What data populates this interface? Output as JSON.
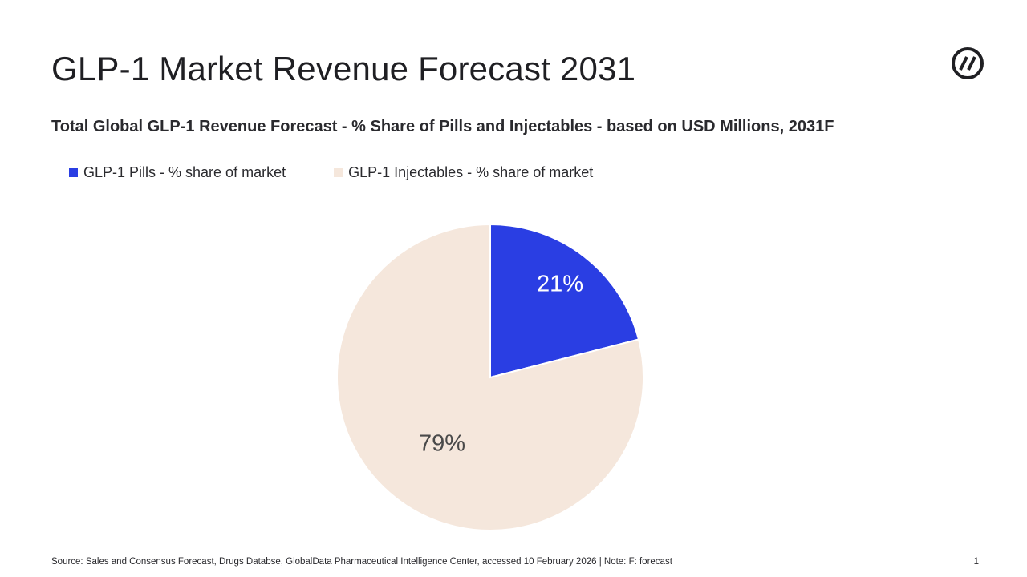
{
  "header": {
    "title": "GLP-1 Market Revenue Forecast 2031",
    "logo_icon": "circle-slash-logo-icon"
  },
  "chart_data": {
    "type": "pie",
    "title": "Total Global GLP-1 Revenue Forecast - % Share of Pills and Injectables - based on USD Millions, 2031F",
    "legend": "top-left",
    "slices": [
      {
        "name": "GLP-1 Pills - % share of market",
        "value": 21,
        "label": "21%",
        "color": "#2a3ee3",
        "label_color": "#ffffff"
      },
      {
        "name": "GLP-1 Injectables - % share of market",
        "value": 79,
        "label": "79%",
        "color": "#f5e7dc",
        "label_color": "#4a4a4a"
      }
    ]
  },
  "footer": {
    "source": "Source: Sales and Consensus Forecast, Drugs Databse, GlobalData Pharmaceutical Intelligence Center, accessed 10 February 2026 | Note: F: forecast",
    "page_number": "1"
  }
}
